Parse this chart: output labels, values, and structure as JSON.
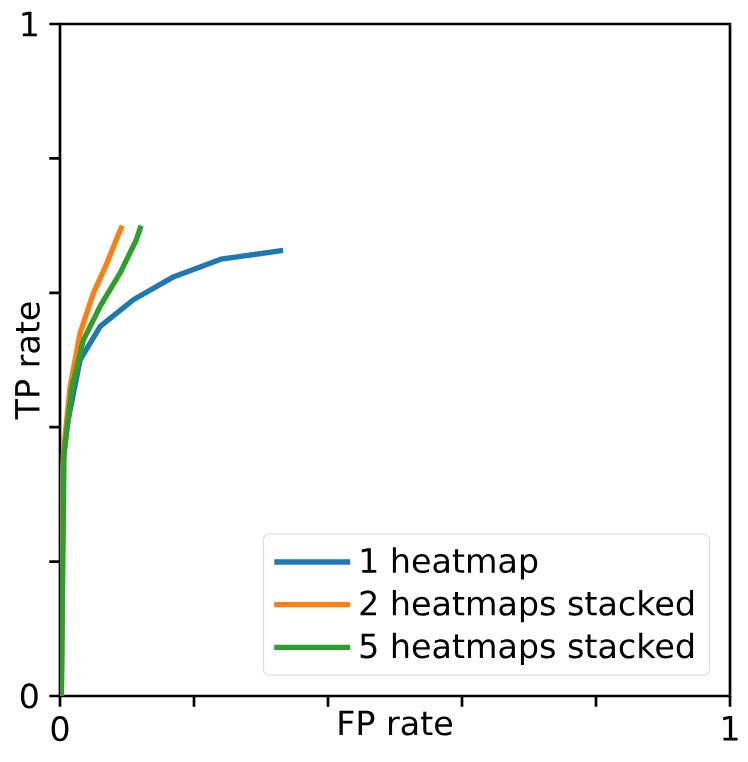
{
  "chart_data": {
    "type": "line",
    "xlabel": "FP rate",
    "ylabel": "TP rate",
    "xlim": [
      0,
      1
    ],
    "ylim": [
      0,
      1
    ],
    "xticks": [
      0,
      {
        "value": 0.2,
        "label": null
      },
      {
        "value": 0.4,
        "label": null
      },
      {
        "value": 0.6,
        "label": null
      },
      {
        "value": 0.8,
        "label": null
      },
      1
    ],
    "yticks": [
      0,
      {
        "value": 0.2,
        "label": null
      },
      {
        "value": 0.4,
        "label": null
      },
      {
        "value": 0.6,
        "label": null
      },
      {
        "value": 0.8,
        "label": null
      },
      1
    ],
    "grid": false,
    "legend": "bottom right",
    "marker": "none",
    "line_style": "solid",
    "series": [
      {
        "name": "1 heatmap",
        "color": "#1f77b4",
        "x": [
          0.002,
          0.004,
          0.01,
          0.03,
          0.06,
          0.11,
          0.17,
          0.24,
          0.333
        ],
        "values": [
          0,
          0.34,
          0.4,
          0.5,
          0.55,
          0.59,
          0.624,
          0.65,
          0.663
        ]
      },
      {
        "name": "2 heatmaps stacked",
        "color": "#ff7f0e",
        "x": [
          0.002,
          0.005,
          0.015,
          0.03,
          0.05,
          0.07,
          0.088,
          0.093
        ],
        "values": [
          0,
          0.36,
          0.46,
          0.54,
          0.6,
          0.644,
          0.689,
          0.7
        ]
      },
      {
        "name": "5 heatmaps stacked",
        "color": "#2ca02c",
        "x": [
          0.002,
          0.006,
          0.018,
          0.035,
          0.06,
          0.09,
          0.114,
          0.121
        ],
        "values": [
          0,
          0.36,
          0.46,
          0.53,
          0.58,
          0.63,
          0.679,
          0.7
        ]
      }
    ]
  }
}
